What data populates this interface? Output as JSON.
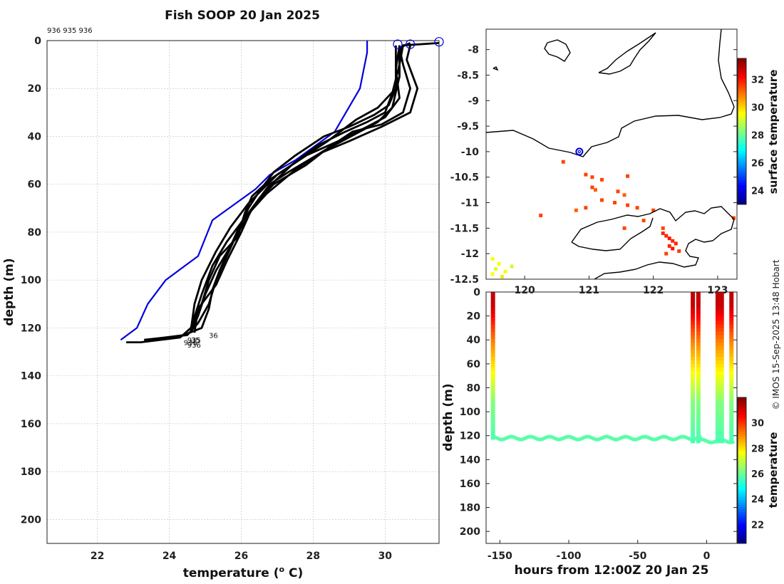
{
  "title": "Fish SOOP 20 Jan 2025",
  "station_label": "936 935 936",
  "credit": "© IMOS 15-Sep-2025 13:48 Hobart",
  "chart_data": [
    {
      "type": "line",
      "name": "profile",
      "xlabel": "temperature (",
      "xlabel_sup": "o",
      "xlabel_tail": " C)",
      "ylabel": "depth (m)",
      "xlim": [
        20.6,
        31.5
      ],
      "ylim": [
        210,
        0
      ],
      "xticks": [
        "22",
        "24",
        "26",
        "28",
        "30"
      ],
      "yticks": [
        "0",
        "20",
        "40",
        "60",
        "80",
        "100",
        "120",
        "140",
        "160",
        "180",
        "200"
      ],
      "grid": true,
      "series": [
        {
          "name": "reference",
          "color": "#0000dd",
          "x": [
            29.5,
            29.5,
            29.3,
            28.6,
            27.5,
            26.8,
            26.4,
            25.2,
            24.8,
            23.9,
            23.4,
            23.1,
            22.65
          ],
          "y": [
            0,
            5,
            20,
            38,
            50,
            56,
            62,
            75,
            90,
            100,
            110,
            120,
            125
          ]
        },
        {
          "name": "cast-1",
          "color": "#000000",
          "x": [
            31.5,
            30.5,
            30.4,
            30.4,
            30.3,
            29.8,
            29.2,
            28.4,
            27.6,
            26.8,
            26.3,
            26.1,
            25.9,
            25.4,
            25.1,
            24.9,
            24.6,
            24.3,
            23.2,
            22.8
          ],
          "y": [
            1,
            2,
            5,
            15,
            20,
            28,
            33,
            42,
            50,
            58,
            65,
            72,
            82,
            90,
            100,
            110,
            120,
            124,
            126,
            126
          ]
        },
        {
          "name": "cast-2",
          "color": "#000000",
          "x": [
            30.7,
            30.4,
            30.5,
            30.7,
            30.5,
            29.9,
            29.1,
            28.4,
            27.8,
            26.9,
            26.4,
            26.0,
            25.7,
            25.4,
            25.2,
            25.1,
            24.9,
            24.4,
            23.4
          ],
          "y": [
            1,
            3,
            10,
            20,
            30,
            35,
            38,
            45,
            52,
            60,
            68,
            76,
            86,
            96,
            104,
            112,
            120,
            123,
            125
          ]
        },
        {
          "name": "cast-3",
          "color": "#000000",
          "x": [
            30.3,
            30.3,
            30.3,
            30.1,
            29.7,
            29.0,
            28.3,
            27.5,
            26.9,
            26.5,
            26.2,
            25.9,
            25.6,
            25.3,
            25.1,
            24.8,
            24.5,
            23.3
          ],
          "y": [
            2,
            10,
            20,
            27,
            31,
            36,
            40,
            48,
            55,
            63,
            70,
            80,
            90,
            100,
            110,
            118,
            123,
            125
          ]
        },
        {
          "name": "cast-4",
          "color": "#000000",
          "x": [
            30.7,
            30.6,
            30.9,
            30.7,
            29.9,
            29.0,
            28.2,
            27.3,
            26.8,
            26.4,
            26.0,
            25.7,
            25.3,
            25.0,
            24.8,
            24.6
          ],
          "y": [
            2,
            8,
            20,
            30,
            36,
            42,
            47,
            55,
            60,
            68,
            78,
            86,
            96,
            106,
            115,
            122
          ]
        },
        {
          "name": "cast-5",
          "color": "#000000",
          "x": [
            30.5,
            30.4,
            30.2,
            30.0,
            29.5,
            28.9,
            28.1,
            27.4,
            26.7,
            26.3,
            26.0,
            25.6,
            25.3,
            24.8,
            24.7
          ],
          "y": [
            2,
            10,
            22,
            30,
            34,
            38,
            44,
            52,
            62,
            70,
            80,
            92,
            102,
            112,
            122
          ]
        },
        {
          "name": "cast-6",
          "color": "#000000",
          "x": [
            30.4,
            30.3,
            30.4,
            30.0,
            29.5,
            28.7,
            27.8,
            27.0,
            26.2,
            25.7,
            25.3,
            24.9,
            24.7,
            24.6
          ],
          "y": [
            2,
            12,
            24,
            32,
            36,
            42,
            48,
            56,
            68,
            78,
            88,
            100,
            110,
            121
          ]
        },
        {
          "name": "cast-7",
          "color": "#000000",
          "x": [
            30.4,
            30.4,
            30.2,
            29.8,
            29.3,
            28.3,
            27.5,
            26.7,
            26.1,
            25.6,
            25.2,
            24.9,
            24.6
          ],
          "y": [
            2,
            15,
            28,
            34,
            38,
            46,
            54,
            64,
            74,
            84,
            94,
            106,
            120
          ]
        }
      ],
      "markers": [
        {
          "x": 30.35,
          "y": 1.5,
          "color": "#0000dd"
        },
        {
          "x": 30.7,
          "y": 1.5,
          "color": "#0000dd"
        },
        {
          "x": 31.5,
          "y": 0.5,
          "color": "#0000dd"
        }
      ],
      "end_labels": [
        "936",
        "935",
        "936",
        "35",
        "36"
      ]
    },
    {
      "type": "heatmap",
      "name": "map",
      "xlim": [
        119.4,
        123.3
      ],
      "ylim": [
        -12.5,
        -7.6
      ],
      "xticks": [
        "120",
        "121",
        "122",
        "123"
      ],
      "yticks": [
        "-8",
        "-8.5",
        "-9",
        "-9.5",
        "-10",
        "-10.5",
        "-11",
        "-11.5",
        "-12",
        "-12.5"
      ],
      "colorbar_label": "surface temperature",
      "colorbar_ticks": [
        "24",
        "26",
        "28",
        "30",
        "32"
      ],
      "colorbar_range": [
        23,
        33.5
      ],
      "position": {
        "lon": 120.85,
        "lat": -10.0
      },
      "pixels": [
        {
          "lon": 120.6,
          "lat": -10.2,
          "t": 31.5
        },
        {
          "lon": 120.95,
          "lat": -10.45,
          "t": 31.5
        },
        {
          "lon": 121.05,
          "lat": -10.5,
          "t": 31.5
        },
        {
          "lon": 121.2,
          "lat": -10.55,
          "t": 31.5
        },
        {
          "lon": 121.6,
          "lat": -10.48,
          "t": 31.5
        },
        {
          "lon": 121.05,
          "lat": -10.7,
          "t": 31.5
        },
        {
          "lon": 121.1,
          "lat": -10.75,
          "t": 31.2
        },
        {
          "lon": 121.45,
          "lat": -10.78,
          "t": 31.5
        },
        {
          "lon": 121.55,
          "lat": -10.85,
          "t": 31.2
        },
        {
          "lon": 121.2,
          "lat": -10.95,
          "t": 31.5
        },
        {
          "lon": 121.4,
          "lat": -11.0,
          "t": 31.5
        },
        {
          "lon": 121.6,
          "lat": -11.05,
          "t": 31.5
        },
        {
          "lon": 121.75,
          "lat": -11.1,
          "t": 31.5
        },
        {
          "lon": 120.8,
          "lat": -11.15,
          "t": 31.2
        },
        {
          "lon": 120.95,
          "lat": -11.1,
          "t": 31.5
        },
        {
          "lon": 122.0,
          "lat": -11.15,
          "t": 31.5
        },
        {
          "lon": 123.25,
          "lat": -11.3,
          "t": 31.5
        },
        {
          "lon": 120.25,
          "lat": -11.25,
          "t": 31.5
        },
        {
          "lon": 121.85,
          "lat": -11.35,
          "t": 31.5
        },
        {
          "lon": 121.55,
          "lat": -11.5,
          "t": 31.5
        },
        {
          "lon": 122.15,
          "lat": -11.6,
          "t": 31.8
        },
        {
          "lon": 122.2,
          "lat": -11.65,
          "t": 31.8
        },
        {
          "lon": 122.25,
          "lat": -11.7,
          "t": 32.0
        },
        {
          "lon": 122.3,
          "lat": -11.75,
          "t": 31.8
        },
        {
          "lon": 122.35,
          "lat": -11.8,
          "t": 31.8
        },
        {
          "lon": 122.25,
          "lat": -11.85,
          "t": 31.8
        },
        {
          "lon": 122.3,
          "lat": -11.9,
          "t": 32.0
        },
        {
          "lon": 122.4,
          "lat": -11.95,
          "t": 31.6
        },
        {
          "lon": 122.2,
          "lat": -12.0,
          "t": 31.5
        },
        {
          "lon": 122.15,
          "lat": -11.5,
          "t": 31.5
        },
        {
          "lon": 119.5,
          "lat": -12.1,
          "t": 29.5
        },
        {
          "lon": 119.6,
          "lat": -12.2,
          "t": 29.5
        },
        {
          "lon": 119.55,
          "lat": -12.3,
          "t": 29.2
        },
        {
          "lon": 119.7,
          "lat": -12.35,
          "t": 29.5
        },
        {
          "lon": 119.8,
          "lat": -12.25,
          "t": 29.0
        },
        {
          "lon": 119.5,
          "lat": -12.4,
          "t": 29.5
        },
        {
          "lon": 119.65,
          "lat": -12.45,
          "t": 29.8
        }
      ]
    },
    {
      "type": "heatmap",
      "name": "section",
      "xlabel": "hours from 12:00Z 20 Jan 25",
      "ylabel": "depth (m)",
      "xlim": [
        -160,
        22
      ],
      "ylim": [
        210,
        0
      ],
      "xticks": [
        "-150",
        "-100",
        "-50",
        "0"
      ],
      "xtick_values": [
        -150,
        -100,
        -50,
        0
      ],
      "yticks": [
        "0",
        "20",
        "40",
        "60",
        "80",
        "100",
        "120",
        "140",
        "160",
        "180",
        "200"
      ],
      "colorbar_label": "temperature",
      "colorbar_ticks": [
        "22",
        "24",
        "26",
        "28",
        "30"
      ],
      "colorbar_range": [
        20.5,
        32
      ],
      "profile_times": [
        -155,
        -10,
        -6,
        8,
        11,
        18
      ],
      "bottom_depth": 122,
      "bottom_temp": 25.8
    }
  ]
}
